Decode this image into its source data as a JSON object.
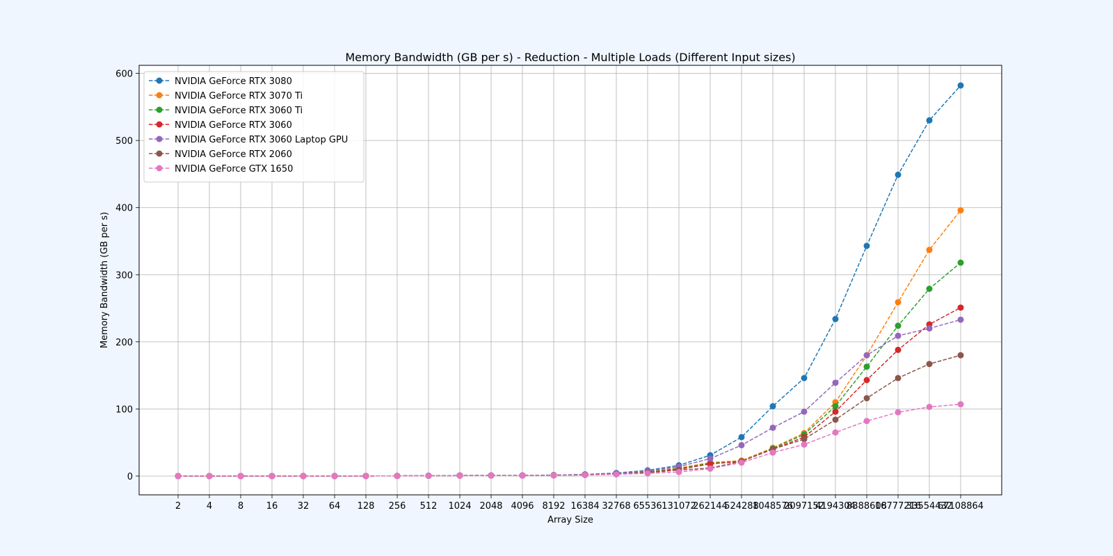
{
  "chart_data": {
    "type": "line",
    "title": "Memory Bandwidth (GB per s) - Reduction - Multiple Loads (Different Input sizes)",
    "xlabel": "Array Size",
    "ylabel": "Memory Bandwidth (GB per s)",
    "x_scale": "categorical",
    "categories": [
      "2",
      "4",
      "8",
      "16",
      "32",
      "64",
      "128",
      "256",
      "512",
      "1024",
      "2048",
      "4096",
      "8192",
      "16384",
      "32768",
      "65536",
      "131072",
      "262144",
      "524288",
      "1048576",
      "2097152",
      "4194304",
      "8388608",
      "16777216",
      "33554432",
      "67108864"
    ],
    "ylim": [
      -28,
      612
    ],
    "yticks": [
      0,
      100,
      200,
      300,
      400,
      500,
      600
    ],
    "grid": true,
    "legend_position": "upper left",
    "line_style": "dashed",
    "marker": "circle",
    "series": [
      {
        "name": "NVIDIA GeForce RTX 3080",
        "color": "#1f77b4",
        "values": [
          0.002,
          0.004,
          0.008,
          0.015,
          0.03,
          0.06,
          0.12,
          0.24,
          0.48,
          0.9,
          1.0,
          1.0,
          1.5,
          2.5,
          4.5,
          8.5,
          16,
          31,
          58,
          104,
          146,
          234,
          343,
          449,
          530,
          582
        ]
      },
      {
        "name": "NVIDIA GeForce RTX 3070 Ti",
        "color": "#ff7f0e",
        "values": [
          0.002,
          0.004,
          0.008,
          0.015,
          0.03,
          0.06,
          0.12,
          0.24,
          0.48,
          0.8,
          0.9,
          0.9,
          1.2,
          2.0,
          3.5,
          6.0,
          12,
          20,
          23,
          42,
          64,
          110,
          180,
          259,
          337,
          396
        ]
      },
      {
        "name": "NVIDIA GeForce RTX 3060 Ti",
        "color": "#2ca02c",
        "values": [
          0.002,
          0.004,
          0.008,
          0.015,
          0.03,
          0.06,
          0.12,
          0.24,
          0.48,
          0.8,
          0.9,
          0.9,
          1.2,
          2.0,
          3.5,
          6.0,
          11,
          19,
          22,
          41,
          62,
          104,
          163,
          224,
          279,
          318
        ]
      },
      {
        "name": "NVIDIA GeForce RTX 3060",
        "color": "#d62728",
        "values": [
          0.002,
          0.004,
          0.008,
          0.015,
          0.03,
          0.06,
          0.12,
          0.24,
          0.48,
          0.7,
          0.8,
          0.8,
          1.1,
          1.8,
          3.2,
          5.5,
          10,
          18,
          22,
          40,
          58,
          96,
          143,
          188,
          226,
          251
        ]
      },
      {
        "name": "NVIDIA GeForce RTX 3060 Laptop GPU",
        "color": "#9467bd",
        "values": [
          0.002,
          0.004,
          0.008,
          0.015,
          0.03,
          0.06,
          0.12,
          0.24,
          0.48,
          0.8,
          0.9,
          0.9,
          1.3,
          2.2,
          4.0,
          7.5,
          14,
          26,
          46,
          72,
          96,
          139,
          180,
          209,
          220,
          233
        ]
      },
      {
        "name": "NVIDIA GeForce RTX 2060",
        "color": "#8c564b",
        "values": [
          0.002,
          0.004,
          0.008,
          0.015,
          0.03,
          0.06,
          0.12,
          0.24,
          0.48,
          0.7,
          0.8,
          0.8,
          1.1,
          1.8,
          3.0,
          5.0,
          9,
          12,
          22,
          40,
          55,
          84,
          116,
          146,
          167,
          180
        ]
      },
      {
        "name": "NVIDIA GeForce GTX 1650",
        "color": "#e377c2",
        "values": [
          0.002,
          0.004,
          0.008,
          0.015,
          0.03,
          0.06,
          0.12,
          0.24,
          0.48,
          0.6,
          0.7,
          0.7,
          0.9,
          1.5,
          2.6,
          4.0,
          6,
          11,
          20,
          35,
          47,
          65,
          82,
          95,
          103,
          107
        ]
      }
    ]
  }
}
